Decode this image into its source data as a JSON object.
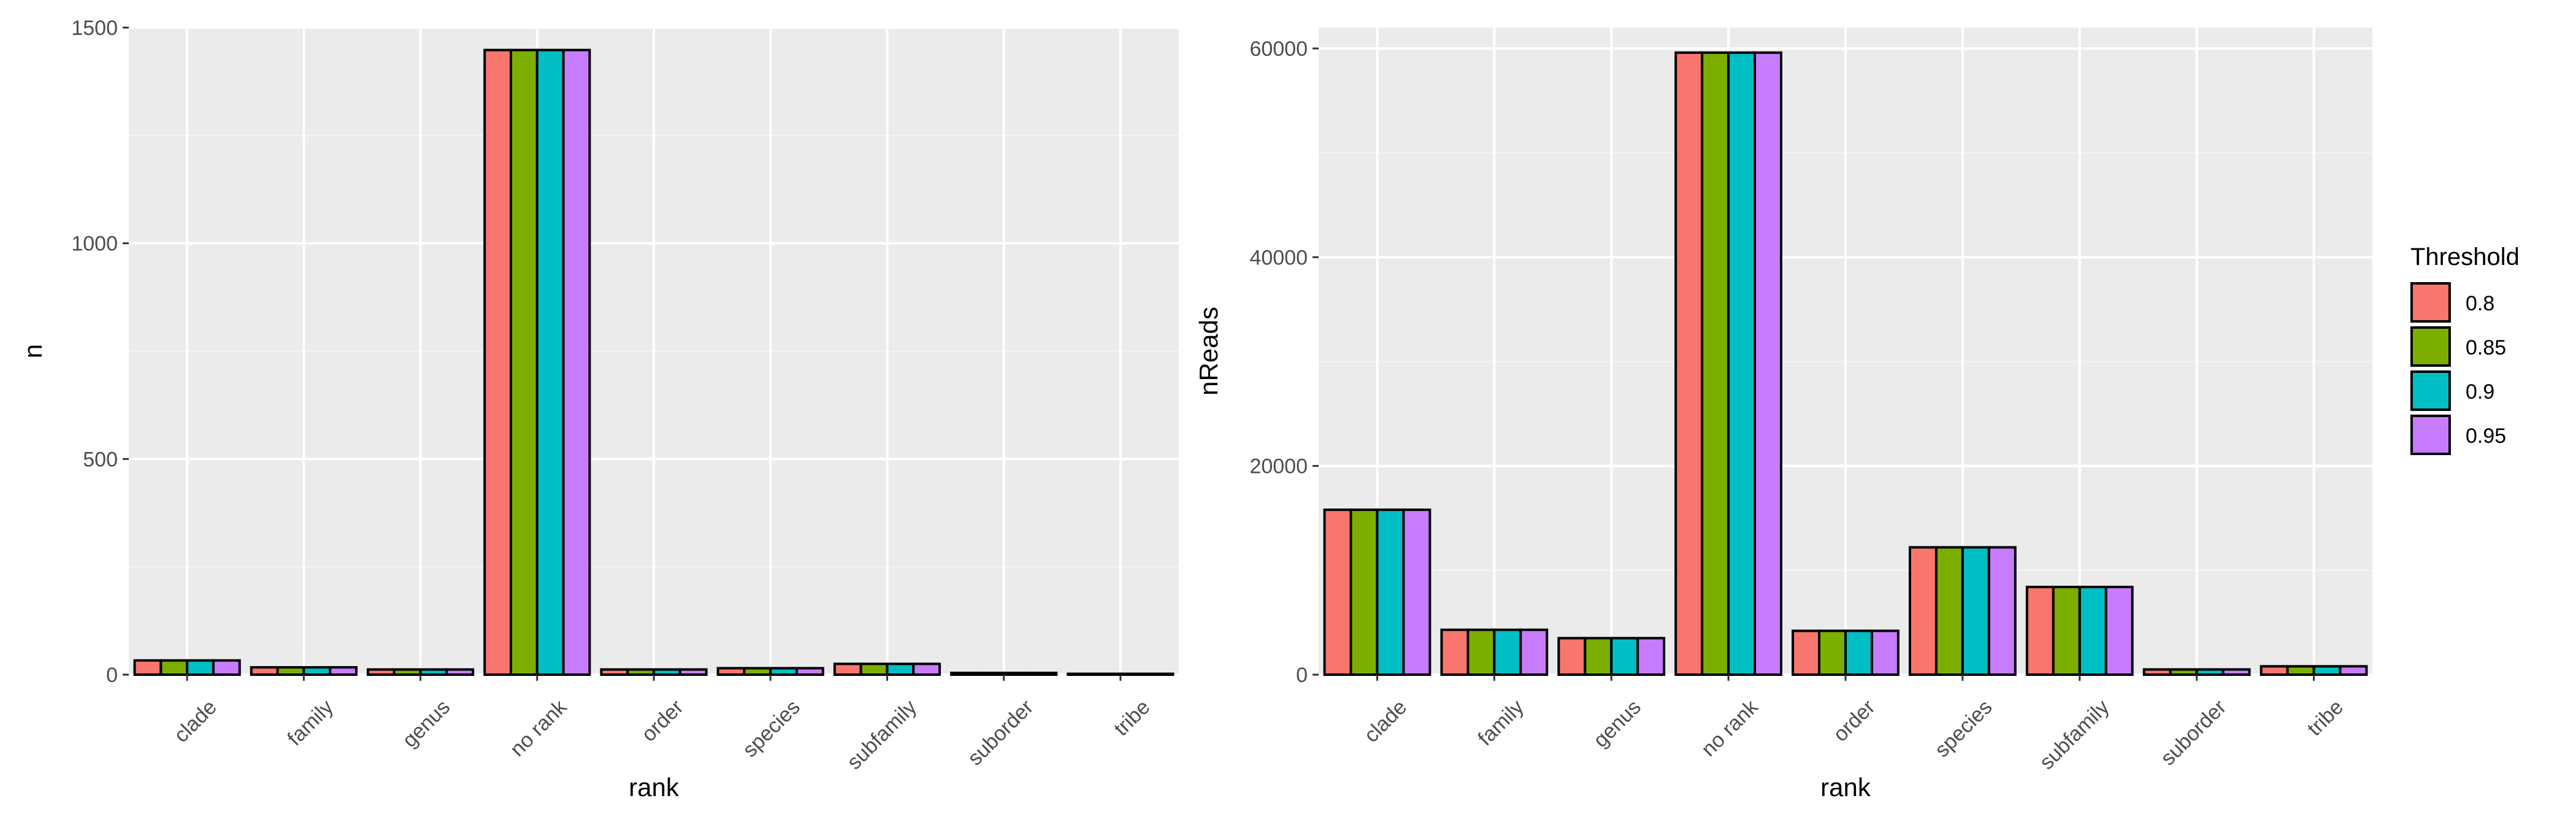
{
  "legend": {
    "title": "Threshold",
    "items": [
      {
        "label": "0.8",
        "color": "#F8766D"
      },
      {
        "label": "0.85",
        "color": "#7CAE00"
      },
      {
        "label": "0.9",
        "color": "#00BFC4"
      },
      {
        "label": "0.95",
        "color": "#C77CFF"
      }
    ],
    "placement": "right"
  },
  "chart_data": [
    {
      "type": "bar",
      "title": "",
      "xlabel": "rank",
      "ylabel": "n",
      "ylim": [
        0,
        1500
      ],
      "yticks": [
        0,
        500,
        1000,
        1500
      ],
      "grid": true,
      "categories": [
        "clade",
        "family",
        "genus",
        "no rank",
        "order",
        "species",
        "subfamily",
        "suborder",
        "tribe"
      ],
      "series": [
        {
          "name": "0.8",
          "values": [
            33,
            17,
            12,
            1448,
            12,
            15,
            25,
            4,
            2
          ]
        },
        {
          "name": "0.85",
          "values": [
            33,
            17,
            12,
            1448,
            12,
            15,
            25,
            4,
            2
          ]
        },
        {
          "name": "0.9",
          "values": [
            33,
            17,
            12,
            1448,
            12,
            15,
            25,
            4,
            2
          ]
        },
        {
          "name": "0.95",
          "values": [
            33,
            17,
            12,
            1448,
            12,
            15,
            25,
            4,
            2
          ]
        }
      ]
    },
    {
      "type": "bar",
      "title": "",
      "xlabel": "rank",
      "ylabel": "nReads",
      "ylim": [
        0,
        62000
      ],
      "yticks": [
        0,
        20000,
        40000,
        60000
      ],
      "grid": true,
      "categories": [
        "clade",
        "family",
        "genus",
        "no rank",
        "order",
        "species",
        "subfamily",
        "suborder",
        "tribe"
      ],
      "series": [
        {
          "name": "0.8",
          "values": [
            15800,
            4300,
            3500,
            59600,
            4200,
            12200,
            8400,
            500,
            800
          ]
        },
        {
          "name": "0.85",
          "values": [
            15800,
            4300,
            3500,
            59600,
            4200,
            12200,
            8400,
            500,
            800
          ]
        },
        {
          "name": "0.9",
          "values": [
            15800,
            4300,
            3500,
            59600,
            4200,
            12200,
            8400,
            500,
            800
          ]
        },
        {
          "name": "0.95",
          "values": [
            15800,
            4300,
            3500,
            59600,
            4200,
            12200,
            8400,
            500,
            800
          ]
        }
      ]
    }
  ]
}
